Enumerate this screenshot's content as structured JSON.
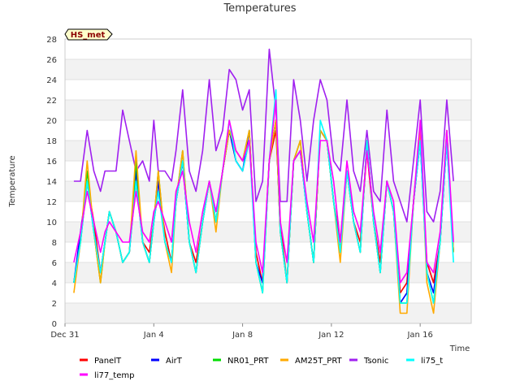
{
  "chart_data": {
    "type": "line",
    "title": "Temperatures",
    "xlabel": "Time",
    "ylabel": "Temperature",
    "badge": "HS_met",
    "ylim": [
      0,
      28
    ],
    "yticks": [
      0,
      2,
      4,
      6,
      8,
      10,
      12,
      14,
      16,
      18,
      20,
      22,
      24,
      26,
      28
    ],
    "xlim": [
      0,
      18.3
    ],
    "xticks": [
      {
        "value": 0,
        "label": "Dec 31"
      },
      {
        "value": 4,
        "label": "Jan 4"
      },
      {
        "value": 8,
        "label": "Jan 8"
      },
      {
        "value": 12,
        "label": "Jan 12"
      },
      {
        "value": 16,
        "label": "Jan 16"
      }
    ],
    "grid": true,
    "legend_position": "bottom",
    "x": [
      0.4,
      0.7,
      1.0,
      1.3,
      1.6,
      1.8,
      2.0,
      2.3,
      2.6,
      2.9,
      3.2,
      3.5,
      3.8,
      4.0,
      4.2,
      4.5,
      4.8,
      5.0,
      5.3,
      5.6,
      5.9,
      6.2,
      6.5,
      6.8,
      7.1,
      7.4,
      7.7,
      8.0,
      8.3,
      8.6,
      8.9,
      9.2,
      9.5,
      9.7,
      10.0,
      10.3,
      10.6,
      10.9,
      11.2,
      11.5,
      11.8,
      12.1,
      12.4,
      12.7,
      13.0,
      13.3,
      13.6,
      13.9,
      14.2,
      14.5,
      14.8,
      15.1,
      15.4,
      15.7,
      16.0,
      16.3,
      16.6,
      16.9,
      17.2,
      17.5
    ],
    "series": [
      {
        "name": "PanelT",
        "color": "#ff0000",
        "values": [
          4,
          8,
          14,
          10,
          5,
          8,
          11,
          9,
          6,
          7,
          14,
          8,
          7,
          10,
          13,
          9,
          6,
          12,
          16,
          8,
          6,
          10,
          14,
          10,
          15,
          19,
          16,
          15,
          18,
          7,
          4,
          16,
          19,
          10,
          4,
          16,
          17,
          11,
          6,
          19,
          18,
          12,
          8,
          15,
          10,
          8,
          17,
          10,
          6,
          14,
          11,
          3,
          4,
          12,
          18,
          6,
          4,
          8,
          18,
          7
        ]
      },
      {
        "name": "AirT",
        "color": "#0000ff",
        "values": [
          4,
          9,
          14,
          9,
          5,
          8,
          11,
          9,
          6,
          7,
          15,
          8,
          6,
          10,
          14,
          8,
          6,
          12,
          16,
          8,
          5,
          10,
          14,
          10,
          15,
          19,
          16,
          15,
          19,
          6,
          4,
          16,
          20,
          9,
          4,
          16,
          17,
          11,
          6,
          19,
          18,
          12,
          7,
          15,
          10,
          7,
          18,
          10,
          5,
          14,
          11,
          2,
          3,
          12,
          18,
          5,
          3,
          8,
          18,
          7
        ]
      },
      {
        "name": "NR01_PRT",
        "color": "#00dd00",
        "values": [
          4,
          8,
          15,
          9,
          4,
          8,
          11,
          9,
          6,
          7,
          16,
          8,
          6,
          10,
          15,
          8,
          6,
          12,
          17,
          8,
          5,
          10,
          14,
          10,
          15,
          19,
          17,
          16,
          19,
          6,
          3,
          16,
          20,
          9,
          4,
          16,
          18,
          11,
          6,
          19,
          18,
          12,
          7,
          15,
          10,
          7,
          18,
          10,
          5,
          14,
          11,
          2,
          2,
          12,
          19,
          5,
          2,
          8,
          19,
          7
        ]
      },
      {
        "name": "AM25T_PRT",
        "color": "#ffaa00",
        "values": [
          3,
          8,
          16,
          9,
          4,
          8,
          11,
          9,
          6,
          7,
          17,
          8,
          6,
          10,
          15,
          8,
          5,
          12,
          17,
          8,
          5,
          10,
          14,
          9,
          15,
          19,
          17,
          16,
          19,
          6,
          3,
          16,
          20,
          9,
          4,
          16,
          18,
          11,
          6,
          19,
          18,
          12,
          6,
          15,
          10,
          7,
          18,
          10,
          5,
          14,
          11,
          1,
          1,
          12,
          19,
          4,
          1,
          8,
          19,
          7
        ]
      },
      {
        "name": "Tsonic",
        "color": "#a020f0",
        "values": [
          14,
          14,
          19,
          15,
          13,
          15,
          15,
          15,
          21,
          18,
          15,
          16,
          14,
          20,
          15,
          15,
          14,
          17,
          23,
          15,
          13,
          17,
          24,
          17,
          19,
          25,
          24,
          21,
          23,
          12,
          14,
          27,
          21,
          12,
          12,
          24,
          20,
          14,
          20,
          24,
          22,
          16,
          15,
          22,
          15,
          13,
          19,
          13,
          12,
          21,
          14,
          12,
          10,
          16,
          22,
          11,
          10,
          13,
          22,
          14
        ]
      },
      {
        "name": "li75_t",
        "color": "#00ffff",
        "values": [
          4,
          8,
          14,
          9,
          5,
          8,
          11,
          9,
          6,
          7,
          14,
          8,
          6,
          10,
          13,
          8,
          6,
          12,
          16,
          8,
          5,
          10,
          14,
          10,
          15,
          20,
          16,
          15,
          18,
          6,
          3,
          16,
          23,
          9,
          4,
          16,
          17,
          11,
          6,
          20,
          18,
          12,
          7,
          15,
          10,
          7,
          18,
          10,
          5,
          14,
          11,
          2,
          2,
          12,
          18,
          5,
          2,
          8,
          18,
          6
        ]
      },
      {
        "name": "li77_temp",
        "color": "#ff00ff",
        "values": [
          6,
          9,
          13,
          10,
          7,
          9,
          10,
          9,
          8,
          8,
          13,
          9,
          8,
          11,
          12,
          10,
          8,
          13,
          15,
          10,
          7,
          11,
          14,
          11,
          15,
          20,
          17,
          16,
          18,
          8,
          5,
          16,
          22,
          10,
          6,
          16,
          17,
          12,
          8,
          18,
          18,
          14,
          8,
          16,
          11,
          9,
          17,
          11,
          7,
          14,
          12,
          4,
          5,
          12,
          20,
          6,
          5,
          9,
          19,
          8
        ]
      }
    ]
  }
}
